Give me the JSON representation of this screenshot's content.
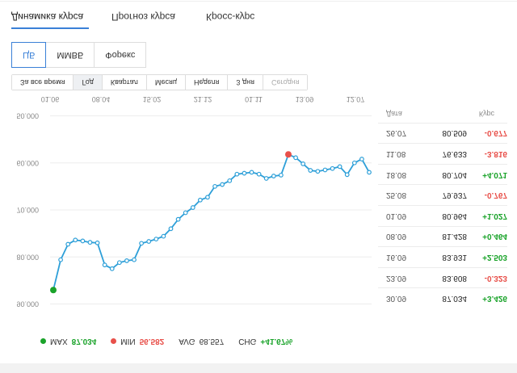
{
  "stats": {
    "max_label": "MAX",
    "max_value": "87.034",
    "min_label": "MIN",
    "min_value": "56.582",
    "avg_label": "AVG",
    "avg_value": "68.557",
    "chg_label": "CHG",
    "chg_value": "+41.67%"
  },
  "colors": {
    "line": "#2d9fd8",
    "max_point": "#1aa32a",
    "min_point": "#e8504a",
    "accent": "#3a80d7"
  },
  "chart_data": {
    "type": "line",
    "x_ticks": [
      "12.07",
      "13.09",
      "01.11",
      "21.12",
      "15.02",
      "08.04",
      "01.06"
    ],
    "y_ticks": [
      "50.000",
      "60.000",
      "70.000",
      "80.000",
      "90.000"
    ],
    "ylim": [
      47,
      93
    ],
    "series": [
      {
        "values": [
          62.0,
          59.2,
          60.0,
          62.5,
          60.8,
          61.2,
          61.5,
          61.8,
          61.6,
          60.2,
          58.9,
          58.2,
          62.6,
          62.8,
          63.3,
          62.4,
          62.0,
          62.2,
          62.4,
          63.8,
          64.6,
          65.0,
          67.3,
          67.9,
          69.5,
          70.6,
          72.0,
          74.0,
          75.6,
          76.2,
          76.7,
          77.1,
          80.6,
          80.8,
          81.2,
          82.5,
          81.7,
          77.0,
          76.9,
          76.6,
          76.4,
          77.3,
          80.6,
          87.034
        ]
      }
    ]
  },
  "table": {
    "rows": [
      {
        "date": "30.09",
        "rate": "87.034",
        "change": "+3.426"
      },
      {
        "date": "23.09",
        "rate": "83.608",
        "change": "-0.323"
      },
      {
        "date": "16.09",
        "rate": "83.931",
        "change": "+2.503"
      },
      {
        "date": "08.09",
        "rate": "81.428",
        "change": "+0.464"
      },
      {
        "date": "01.09",
        "rate": "80.964",
        "change": "+1.027"
      },
      {
        "date": "25.08",
        "rate": "79.937",
        "change": "-0.767"
      },
      {
        "date": "18.08",
        "rate": "80.704",
        "change": "+4.071"
      },
      {
        "date": "11.08",
        "rate": "76.633",
        "change": "-3.816"
      },
      {
        "date": "26.07",
        "rate": "80.509",
        "change": "-0.677"
      }
    ],
    "header_date": "Дата",
    "header_rate": "Курс"
  },
  "periods": [
    "Сегодня",
    "3 дня",
    "Неделя",
    "Месяц",
    "Квартал",
    "Год",
    "За все время"
  ],
  "sources": [
    "ЦБ",
    "ММВБ",
    "Форекс"
  ],
  "tabs": [
    "Динамика курса",
    "Прогноз курса",
    "Кросс-курс"
  ]
}
